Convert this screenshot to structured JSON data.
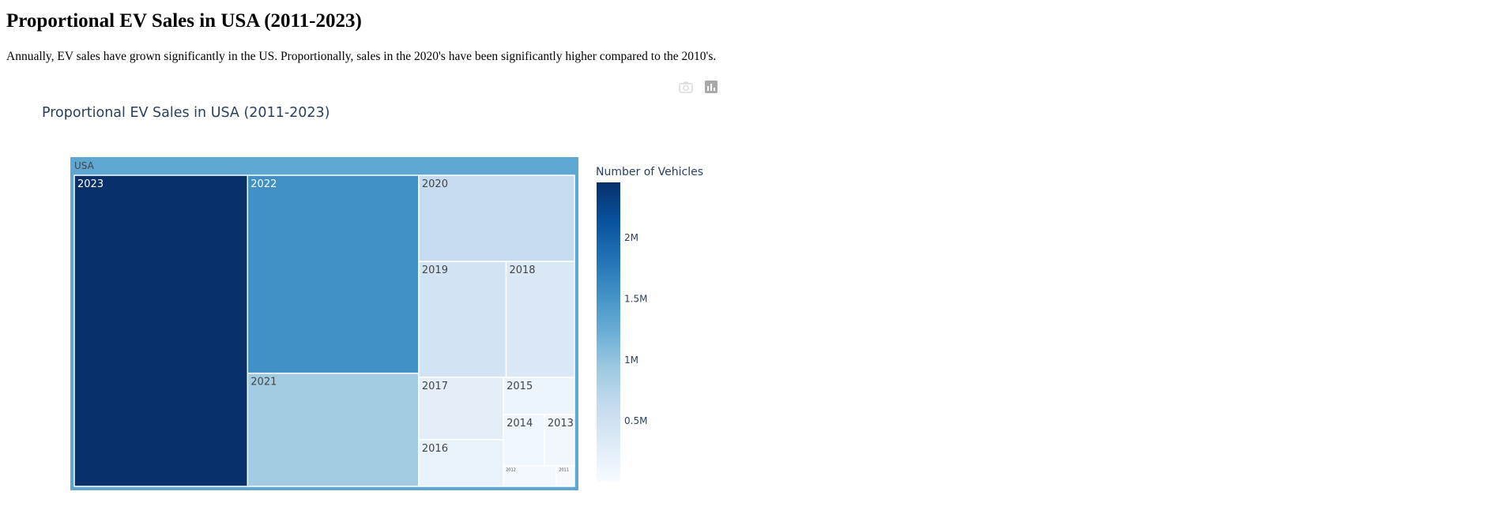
{
  "page": {
    "heading": "Proportional EV Sales in USA (2011-2023)",
    "description": "Annually, EV sales have grown significantly in the US. Proportionally, sales in the 2020's have been significantly higher compared to the 2010's."
  },
  "modebar": {
    "icons": [
      "camera-icon",
      "bar-chart-icon"
    ]
  },
  "colors": {
    "scale": [
      "#f7fbff",
      "#deebf7",
      "#c6dbef",
      "#9ecae1",
      "#6baed6",
      "#4292c6",
      "#2171b5",
      "#08519c",
      "#08306b"
    ],
    "root": "#5ea7d3",
    "label_dark": "#444444",
    "label_light": "#ffffff",
    "title": "#2a3f5f"
  },
  "chart_data": {
    "type": "treemap",
    "title": "Proportional EV Sales in USA (2011-2023)",
    "root_label": "USA",
    "nodes": [
      {
        "label": "2023",
        "value": 2450000
      },
      {
        "label": "2022",
        "value": 1540000
      },
      {
        "label": "2021",
        "value": 880000
      },
      {
        "label": "2020",
        "value": 610000
      },
      {
        "label": "2019",
        "value": 460000
      },
      {
        "label": "2018",
        "value": 360000
      },
      {
        "label": "2017",
        "value": 240000
      },
      {
        "label": "2016",
        "value": 180000
      },
      {
        "label": "2015",
        "value": 120000
      },
      {
        "label": "2014",
        "value": 95000
      },
      {
        "label": "2013",
        "value": 70000
      },
      {
        "label": "2012",
        "value": 50000
      },
      {
        "label": "2011",
        "value": 17000
      }
    ],
    "colorbar": {
      "title": "Number of Vehicles",
      "range": [
        0,
        2450000
      ],
      "ticks": [
        500000,
        1000000,
        1500000,
        2000000
      ],
      "tick_labels": [
        "0.5M",
        "1M",
        "1.5M",
        "2M"
      ]
    }
  }
}
